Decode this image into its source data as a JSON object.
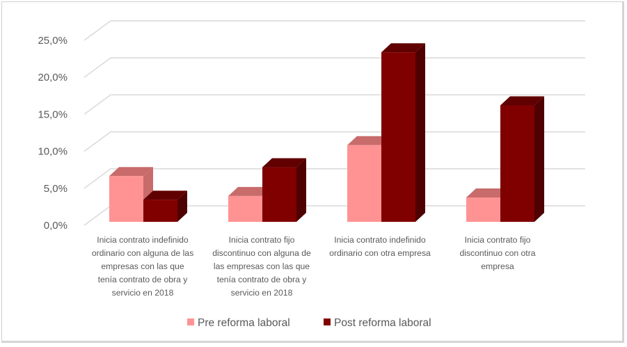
{
  "chart_data": {
    "type": "bar",
    "subtype": "3d-clustered-column",
    "title": "",
    "xlabel": "",
    "ylabel": "",
    "ylim": [
      0,
      25
    ],
    "yticks": [
      "0,0%",
      "5,0%",
      "10,0%",
      "15,0%",
      "20,0%",
      "25,0%"
    ],
    "grid": true,
    "legend_position": "bottom",
    "categories": [
      "Inicia contrato indefinido ordinario con alguna de las empresas con las que tenía contrato de obra y servicio en 2018",
      "Inicia contrato fijo discontinuo con alguna de las empresas con las que tenía contrato de obra y servicio en 2018",
      "Inicia contrato indefinido ordinario con otra empresa",
      "Inicia contrato fijo discontinuo con otra empresa"
    ],
    "category_lines": [
      [
        "Inicia contrato indefinido",
        "ordinario con alguna de las",
        "empresas con las que",
        "tenía contrato de obra y",
        "servicio en 2018"
      ],
      [
        "Inicia contrato fijo",
        "discontinuo con alguna de",
        "las empresas con las que",
        "tenía contrato de obra y",
        "servicio en 2018"
      ],
      [
        "Inicia contrato indefinido",
        "ordinario con otra empresa"
      ],
      [
        "Inicia contrato fijo",
        "discontinuo con otra",
        "empresa"
      ]
    ],
    "series": [
      {
        "name": "Pre reforma laboral",
        "color": "#FF9393",
        "top_color": "#C86B6B",
        "side_color": "#C86B6B",
        "values": [
          6.2,
          3.5,
          10.4,
          3.3
        ]
      },
      {
        "name": "Post reforma laboral",
        "color": "#800000",
        "top_color": "#600000",
        "side_color": "#4F0000",
        "values": [
          3.0,
          7.4,
          23.0,
          15.8
        ]
      }
    ]
  },
  "legend": {
    "items": [
      {
        "label": "Pre reforma laboral",
        "color": "#FF9393"
      },
      {
        "label": "Post reforma laboral",
        "color": "#800000"
      }
    ]
  }
}
